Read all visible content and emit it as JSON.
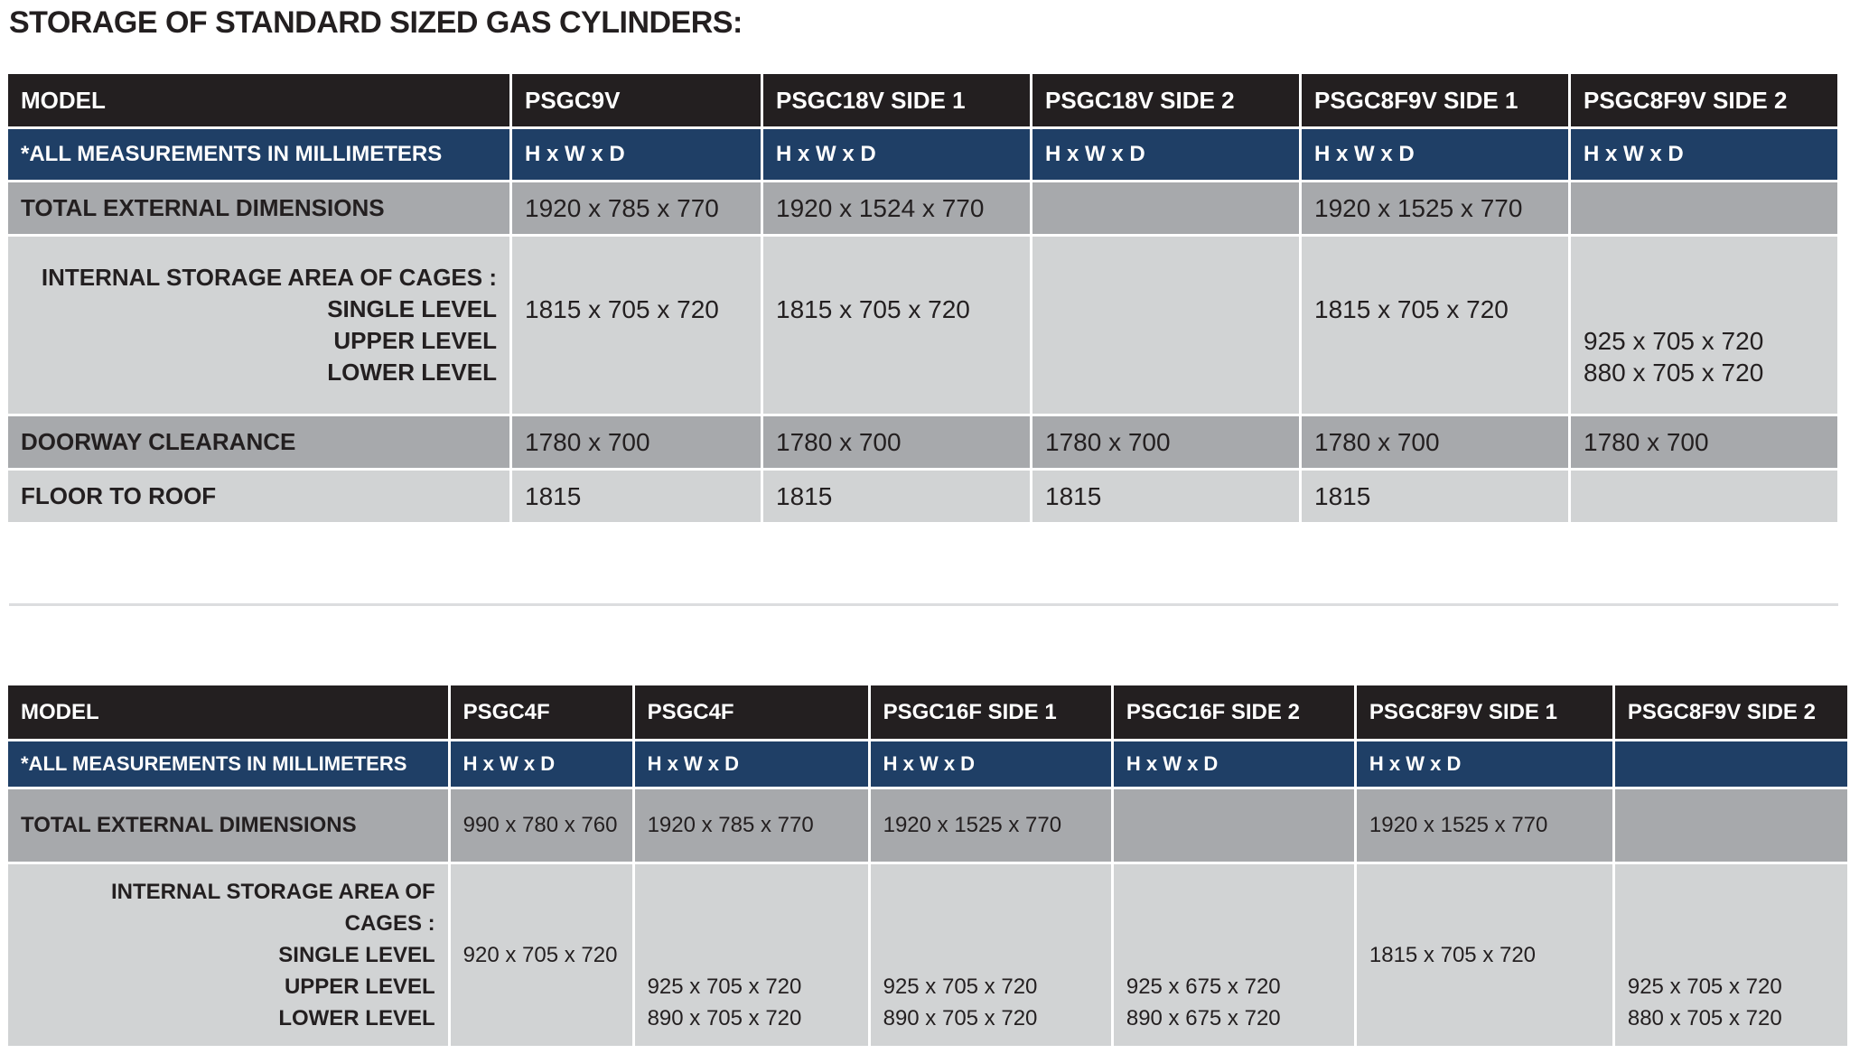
{
  "title": "STORAGE OF STANDARD SIZED GAS CYLINDERS:",
  "tables": [
    {
      "header": [
        "MODEL",
        "PSGC9V",
        "PSGC18V SIDE 1",
        "PSGC18V SIDE 2",
        "PSGC8F9V SIDE 1",
        "PSGC8F9V SIDE 2"
      ],
      "subheader": [
        "*ALL MEASUREMENTS IN MILLIMETERS",
        "H x W x D",
        "H x W x D",
        "H x W x D",
        "H x W x D",
        "H x W x D"
      ],
      "rows": [
        {
          "label": [
            "TOTAL EXTERNAL DIMENSIONS"
          ],
          "cells": [
            [
              "1920 x 785 x 770"
            ],
            [
              "1920 x 1524 x 770"
            ],
            null,
            [
              "1920 x 1525 x 770"
            ],
            null
          ]
        },
        {
          "label": [
            "INTERNAL STORAGE AREA OF CAGES :",
            "SINGLE LEVEL",
            "UPPER LEVEL",
            "LOWER LEVEL"
          ],
          "cells": [
            [
              null,
              "1815 x 705 x 720",
              null,
              null
            ],
            [
              null,
              "1815 x 705 x 720",
              null,
              null
            ],
            null,
            [
              null,
              "1815 x 705 x 720",
              null,
              null
            ],
            [
              null,
              null,
              "925 x 705 x 720",
              "880 x 705 x 720"
            ]
          ]
        },
        {
          "label": [
            "DOORWAY CLEARANCE"
          ],
          "cells": [
            [
              "1780 x 700"
            ],
            [
              "1780 x 700"
            ],
            [
              "1780 x 700"
            ],
            [
              "1780 x 700"
            ],
            [
              "1780 x 700"
            ]
          ]
        },
        {
          "label": [
            "FLOOR TO ROOF"
          ],
          "cells": [
            [
              "1815"
            ],
            [
              "1815"
            ],
            [
              "1815"
            ],
            [
              "1815"
            ],
            null
          ]
        }
      ]
    },
    {
      "header": [
        "MODEL",
        "PSGC4F",
        "PSGC4F",
        "PSGC16F SIDE 1",
        "PSGC16F SIDE 2",
        "PSGC8F9V SIDE 1",
        "PSGC8F9V SIDE 2"
      ],
      "subheader": [
        "*ALL MEASUREMENTS IN MILLIMETERS",
        "H x W x D",
        "H x W x D",
        "H x W x D",
        "H x W x D",
        "H x W x D",
        null
      ],
      "rows": [
        {
          "label": [
            "TOTAL EXTERNAL DIMENSIONS"
          ],
          "cells": [
            [
              "990 x 780 x 760"
            ],
            [
              "1920 x 785 x 770"
            ],
            [
              "1920 x 1525 x 770"
            ],
            null,
            [
              "1920 x 1525 x 770"
            ],
            null
          ]
        },
        {
          "label": [
            "INTERNAL STORAGE AREA OF",
            "CAGES :",
            "SINGLE LEVEL",
            "UPPER LEVEL",
            "LOWER LEVEL"
          ],
          "cells": [
            [
              null,
              null,
              "920 x 705 x 720",
              null,
              null
            ],
            [
              null,
              null,
              null,
              "925 x 705 x 720",
              "890 x 705 x 720"
            ],
            [
              null,
              null,
              null,
              "925 x 705 x 720",
              "890 x 705 x 720"
            ],
            [
              null,
              null,
              null,
              "925 x 675 x 720",
              "890 x 675 x 720"
            ],
            [
              null,
              null,
              "1815 x 705 x 720",
              null,
              null
            ],
            [
              null,
              null,
              null,
              "925 x 705 x 720",
              "880 x 705 x 720"
            ]
          ]
        }
      ]
    }
  ]
}
